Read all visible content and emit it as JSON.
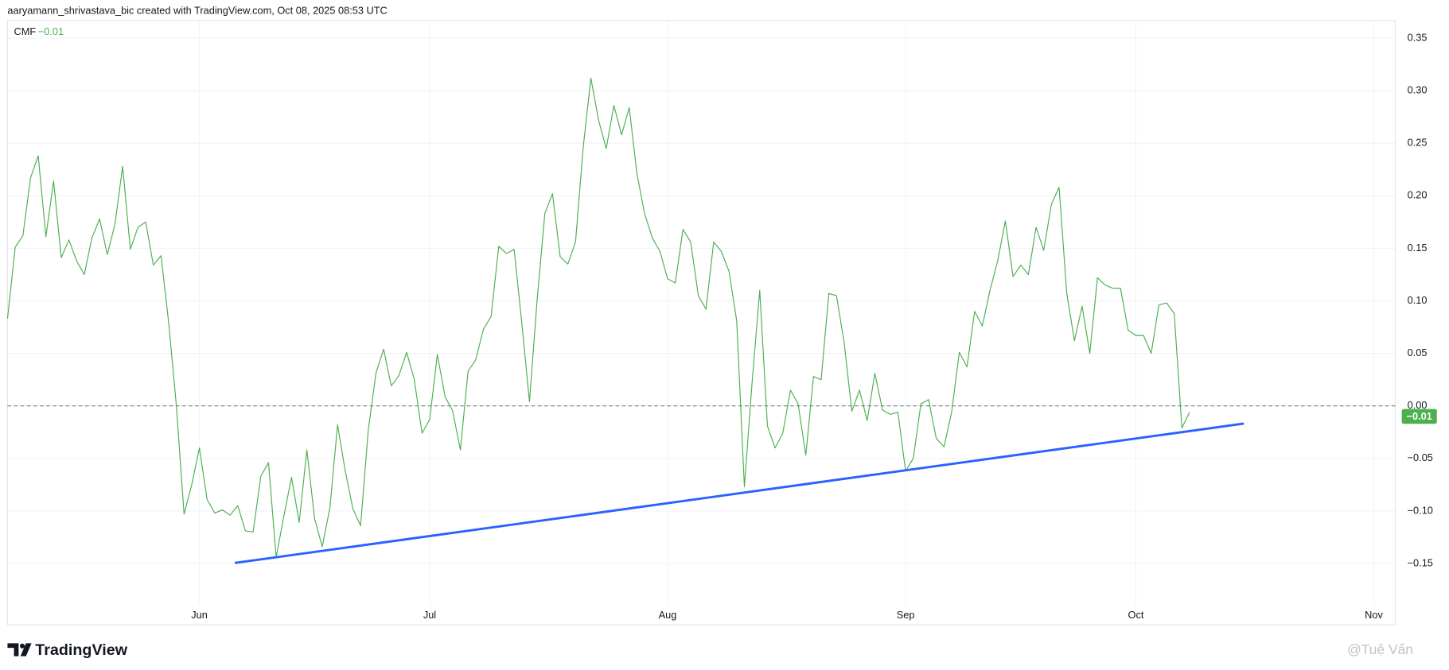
{
  "attribution": "aaryamann_shrivastava_bic created with TradingView.com, Oct 08, 2025 08:53 UTC",
  "brand": "TradingView",
  "watermark": "@Tuệ Vấn",
  "chart_data": {
    "type": "line",
    "categories": [
      null,
      null,
      null,
      null,
      null,
      null,
      null,
      null,
      null,
      null,
      null,
      null,
      null,
      null,
      null,
      null,
      null,
      null,
      null,
      null,
      null,
      null,
      null,
      null,
      null,
      "Jun",
      null,
      null,
      null,
      null,
      null,
      null,
      null,
      null,
      null,
      null,
      null,
      null,
      null,
      null,
      null,
      null,
      null,
      null,
      null,
      null,
      null,
      null,
      null,
      null,
      null,
      null,
      null,
      null,
      null,
      "Jul",
      null,
      null,
      null,
      null,
      null,
      null,
      null,
      null,
      null,
      null,
      null,
      null,
      null,
      null,
      null,
      null,
      null,
      null,
      null,
      null,
      null,
      null,
      null,
      null,
      null,
      null,
      null,
      null,
      null,
      null,
      "Aug",
      null,
      null,
      null,
      null,
      null,
      null,
      null,
      null,
      null,
      null,
      null,
      null,
      null,
      null,
      null,
      null,
      null,
      null,
      null,
      null,
      null,
      null,
      null,
      null,
      null,
      null,
      null,
      null,
      null,
      null,
      "Sep",
      null,
      null,
      null,
      null,
      null,
      null,
      null,
      null,
      null,
      null,
      null,
      null,
      null,
      null,
      null,
      null,
      null,
      null,
      null,
      null,
      null,
      null,
      null,
      null,
      null,
      null,
      null,
      null,
      null,
      "Oct",
      null,
      null,
      null,
      null,
      null,
      null,
      null,
      null,
      null,
      null,
      null,
      null,
      null,
      null,
      null,
      null,
      null,
      null,
      null,
      null,
      null,
      null,
      null,
      null,
      null,
      null,
      null,
      null,
      null,
      null,
      "Nov",
      null,
      null
    ],
    "series": [
      {
        "name": "CMF",
        "color": "#4caf50",
        "values": [
          0.083,
          0.151,
          0.162,
          0.217,
          0.238,
          0.161,
          0.214,
          0.141,
          0.158,
          0.138,
          0.125,
          0.16,
          0.178,
          0.144,
          0.173,
          0.228,
          0.149,
          0.17,
          0.175,
          0.134,
          0.143,
          0.079,
          0.0,
          -0.103,
          -0.075,
          -0.04,
          -0.089,
          -0.102,
          -0.099,
          -0.104,
          -0.095,
          -0.119,
          -0.12,
          -0.067,
          -0.054,
          -0.144,
          -0.105,
          -0.068,
          -0.111,
          -0.042,
          -0.107,
          -0.134,
          -0.097,
          -0.018,
          -0.062,
          -0.098,
          -0.114,
          -0.023,
          0.031,
          0.054,
          0.019,
          0.029,
          0.051,
          0.025,
          -0.026,
          -0.013,
          0.049,
          0.009,
          -0.005,
          -0.042,
          0.033,
          0.044,
          0.073,
          0.085,
          0.152,
          0.145,
          0.149,
          0.079,
          0.004,
          0.101,
          0.183,
          0.202,
          0.142,
          0.135,
          0.156,
          0.246,
          0.312,
          0.272,
          0.245,
          0.286,
          0.258,
          0.284,
          0.221,
          0.183,
          0.16,
          0.147,
          0.121,
          0.117,
          0.168,
          0.156,
          0.105,
          0.092,
          0.156,
          0.147,
          0.128,
          0.081,
          -0.077,
          0.022,
          0.11,
          -0.019,
          -0.04,
          -0.026,
          0.015,
          0.002,
          -0.047,
          0.028,
          0.025,
          0.107,
          0.105,
          0.06,
          -0.005,
          0.015,
          -0.014,
          0.031,
          -0.004,
          -0.008,
          -0.006,
          -0.062,
          -0.05,
          0.002,
          0.006,
          -0.031,
          -0.039,
          -0.006,
          0.051,
          0.037,
          0.09,
          0.076,
          0.11,
          0.138,
          0.176,
          0.123,
          0.134,
          0.125,
          0.17,
          0.148,
          0.192,
          0.208,
          0.107,
          0.062,
          0.095,
          0.05,
          0.122,
          0.115,
          0.112,
          0.112,
          0.072,
          0.067,
          0.067,
          0.05,
          0.096,
          0.098,
          0.088,
          -0.021,
          -0.006,
          null,
          null,
          null,
          null,
          null,
          null,
          null,
          null,
          null,
          null,
          null,
          null,
          null,
          null,
          null,
          null,
          null,
          null,
          null,
          null,
          null,
          null,
          null,
          null,
          null,
          null
        ]
      }
    ],
    "current": {
      "value": -0.01,
      "label": "−0.01"
    },
    "zero_line": 0,
    "ylim": [
      -0.189,
      0.367
    ],
    "yticks": [
      {
        "value": -0.15,
        "label": "−0.15"
      },
      {
        "value": -0.1,
        "label": "−0.10"
      },
      {
        "value": -0.05,
        "label": "−0.05"
      },
      {
        "value": 0,
        "label": "0.00"
      },
      0.05,
      {
        "value": 0.1,
        "label": "0.10"
      },
      0.15,
      {
        "value": 0.2,
        "label": "0.20"
      },
      0.25,
      {
        "value": 0.3,
        "label": "0.30"
      },
      0.35
    ],
    "grid": true
  }
}
